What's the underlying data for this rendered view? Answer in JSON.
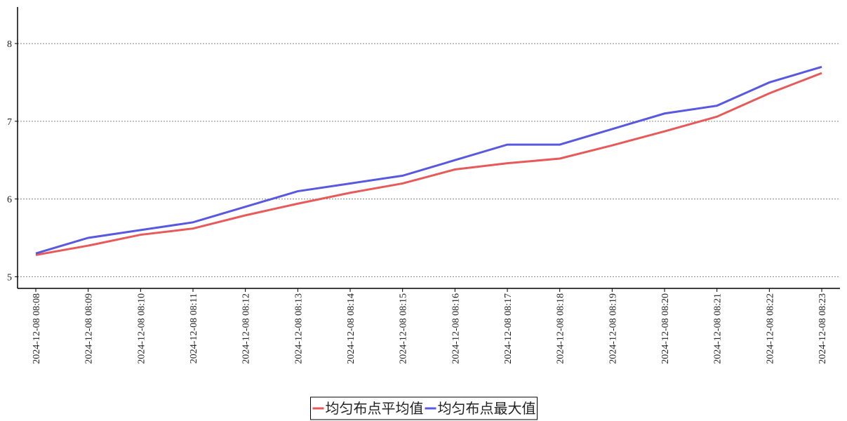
{
  "chart_data": {
    "type": "line",
    "categories": [
      "2024-12-08 08:08",
      "2024-12-08 08:09",
      "2024-12-08 08:10",
      "2024-12-08 08:11",
      "2024-12-08 08:12",
      "2024-12-08 08:13",
      "2024-12-08 08:14",
      "2024-12-08 08:15",
      "2024-12-08 08:16",
      "2024-12-08 08:17",
      "2024-12-08 08:18",
      "2024-12-08 08:19",
      "2024-12-08 08:20",
      "2024-12-08 08:21",
      "2024-12-08 08:22",
      "2024-12-08 08:23"
    ],
    "series": [
      {
        "name": "均匀布点平均值",
        "color": "#e85a5a",
        "values": [
          5.28,
          5.4,
          5.54,
          5.62,
          5.79,
          5.94,
          6.08,
          6.2,
          6.38,
          6.46,
          6.52,
          6.69,
          6.87,
          7.06,
          7.36,
          7.62
        ]
      },
      {
        "name": "均匀布点最大值",
        "color": "#5858e0",
        "values": [
          5.3,
          5.5,
          5.6,
          5.7,
          5.9,
          6.1,
          6.2,
          6.3,
          6.5,
          6.7,
          6.7,
          6.9,
          7.1,
          7.2,
          7.5,
          7.7
        ]
      }
    ],
    "ylim": [
      4.85,
      8.47
    ],
    "yticks": [
      5,
      6,
      7,
      8
    ],
    "grid": true,
    "legend": "bottom"
  }
}
